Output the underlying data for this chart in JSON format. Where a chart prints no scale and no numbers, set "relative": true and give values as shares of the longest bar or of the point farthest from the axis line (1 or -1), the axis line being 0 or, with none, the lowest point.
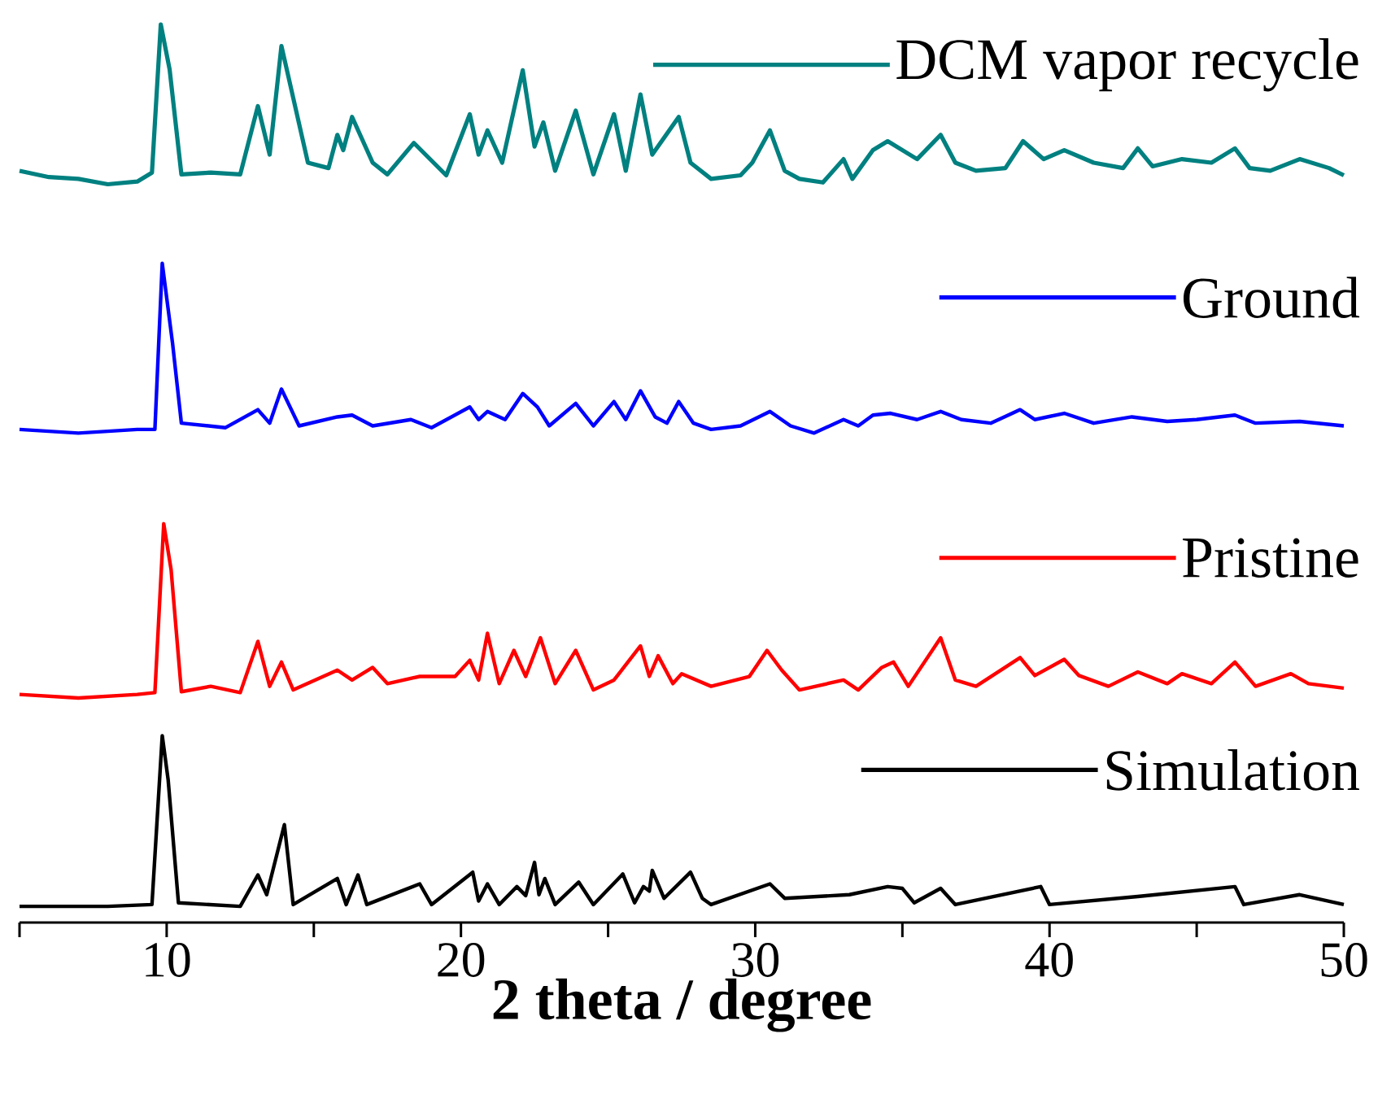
{
  "chart_data": {
    "type": "line",
    "relative": true,
    "xlabel": "2 theta / degree",
    "xlim": [
      5,
      50
    ],
    "xticks": [
      {
        "value": 5,
        "label": null
      },
      10,
      {
        "value": 15,
        "label": null
      },
      20,
      {
        "value": 25,
        "label": null
      },
      30,
      {
        "value": 35,
        "label": null
      },
      40,
      {
        "value": 45,
        "label": null
      },
      50
    ],
    "legend": "right",
    "series": [
      {
        "name": "DCM vapor recycle",
        "color": "#008080",
        "x": [
          5,
          6,
          7,
          8,
          9,
          9.5,
          9.8,
          10.1,
          10.5,
          11.5,
          12.5,
          13.1,
          13.5,
          13.9,
          14.8,
          15.5,
          15.8,
          16.0,
          16.3,
          17,
          17.5,
          18.4,
          19.5,
          20.3,
          20.6,
          20.9,
          21.4,
          22.1,
          22.5,
          22.8,
          23.2,
          23.9,
          24.5,
          25.2,
          25.6,
          26.1,
          26.5,
          27.4,
          27.8,
          28.5,
          29.5,
          29.9,
          30.5,
          31.0,
          31.5,
          32.3,
          33.0,
          33.3,
          34.0,
          34.5,
          35.5,
          36.3,
          36.8,
          37.5,
          38.5,
          39.1,
          39.8,
          40.5,
          41.5,
          42.5,
          43.0,
          43.5,
          44.5,
          45.5,
          46.3,
          46.8,
          47.5,
          48.5,
          49.5,
          50
        ],
        "values": [
          0.837,
          0.83,
          0.828,
          0.822,
          0.825,
          0.835,
          1.0,
          0.95,
          0.833,
          0.835,
          0.833,
          0.909,
          0.855,
          0.976,
          0.846,
          0.84,
          0.877,
          0.86,
          0.897,
          0.846,
          0.833,
          0.868,
          0.832,
          0.9,
          0.855,
          0.882,
          0.846,
          0.949,
          0.864,
          0.891,
          0.837,
          0.904,
          0.833,
          0.9,
          0.837,
          0.922,
          0.855,
          0.897,
          0.846,
          0.828,
          0.832,
          0.846,
          0.882,
          0.837,
          0.828,
          0.824,
          0.85,
          0.828,
          0.86,
          0.87,
          0.85,
          0.877,
          0.846,
          0.837,
          0.84,
          0.87,
          0.85,
          0.86,
          0.846,
          0.84,
          0.862,
          0.842,
          0.85,
          0.846,
          0.862,
          0.84,
          0.837,
          0.85,
          0.84,
          0.832
        ]
      },
      {
        "name": "Ground",
        "color": "#0000ff",
        "x": [
          5,
          7,
          9,
          9.6,
          9.85,
          10.2,
          10.5,
          12,
          13.1,
          13.5,
          13.9,
          14.5,
          15.8,
          16.3,
          17,
          18.3,
          19,
          20.3,
          20.6,
          20.9,
          21.5,
          22.1,
          22.6,
          23,
          23.9,
          24.5,
          25.2,
          25.6,
          26.1,
          26.6,
          27,
          27.4,
          27.9,
          28.5,
          29.5,
          30.5,
          31.2,
          32,
          33,
          33.5,
          34,
          34.6,
          35.5,
          36.3,
          37,
          38,
          39,
          39.5,
          40.5,
          41.5,
          42.8,
          44,
          45,
          46.3,
          47,
          48.5,
          50
        ],
        "values": [
          0.549,
          0.545,
          0.549,
          0.549,
          0.734,
          0.645,
          0.556,
          0.551,
          0.571,
          0.556,
          0.594,
          0.553,
          0.563,
          0.565,
          0.553,
          0.56,
          0.551,
          0.574,
          0.56,
          0.569,
          0.56,
          0.589,
          0.574,
          0.553,
          0.578,
          0.553,
          0.58,
          0.56,
          0.592,
          0.563,
          0.556,
          0.58,
          0.556,
          0.549,
          0.553,
          0.569,
          0.553,
          0.545,
          0.56,
          0.553,
          0.565,
          0.567,
          0.56,
          0.569,
          0.56,
          0.556,
          0.571,
          0.56,
          0.567,
          0.556,
          0.563,
          0.558,
          0.56,
          0.565,
          0.556,
          0.558,
          0.553
        ]
      },
      {
        "name": "Pristine",
        "color": "#ff0000",
        "x": [
          5,
          7,
          9,
          9.6,
          9.9,
          10.15,
          10.5,
          11.5,
          12.5,
          13.1,
          13.5,
          13.9,
          14.3,
          15.8,
          16.3,
          17,
          17.5,
          18.6,
          19.8,
          20.3,
          20.6,
          20.9,
          21.3,
          21.8,
          22.2,
          22.7,
          23.2,
          23.9,
          24.5,
          25.2,
          26.1,
          26.4,
          26.7,
          27.2,
          27.5,
          28.5,
          29.8,
          30.4,
          30.9,
          31.5,
          33,
          33.5,
          34.3,
          34.7,
          35.2,
          36.3,
          36.8,
          37.5,
          39,
          39.5,
          40.5,
          41,
          42,
          43,
          44,
          44.5,
          45.5,
          46.3,
          47,
          48.2,
          48.8,
          50
        ],
        "values": [
          0.254,
          0.25,
          0.254,
          0.256,
          0.444,
          0.393,
          0.257,
          0.263,
          0.256,
          0.313,
          0.263,
          0.29,
          0.259,
          0.281,
          0.27,
          0.284,
          0.266,
          0.274,
          0.274,
          0.292,
          0.27,
          0.322,
          0.266,
          0.303,
          0.274,
          0.317,
          0.266,
          0.303,
          0.259,
          0.27,
          0.308,
          0.274,
          0.297,
          0.266,
          0.277,
          0.263,
          0.274,
          0.303,
          0.281,
          0.259,
          0.27,
          0.259,
          0.284,
          0.29,
          0.263,
          0.317,
          0.27,
          0.263,
          0.295,
          0.275,
          0.293,
          0.275,
          0.263,
          0.279,
          0.266,
          0.277,
          0.266,
          0.29,
          0.263,
          0.277,
          0.266,
          0.261
        ]
      },
      {
        "name": "Simulation",
        "color": "#000000",
        "x": [
          5,
          8,
          9.5,
          9.85,
          10.05,
          10.4,
          12.5,
          13.1,
          13.4,
          14,
          14.3,
          15.8,
          16.1,
          16.5,
          16.8,
          18.6,
          19,
          20.4,
          20.6,
          20.9,
          21.3,
          21.9,
          22.2,
          22.5,
          22.65,
          22.85,
          23.2,
          24,
          24.5,
          25.5,
          25.9,
          26.2,
          26.4,
          26.5,
          26.9,
          27.8,
          28.2,
          28.5,
          30.5,
          31,
          33.2,
          34.5,
          35,
          35.4,
          36.3,
          36.8,
          39.7,
          40,
          43,
          46.3,
          46.6,
          48.5,
          50
        ],
        "values": [
          0.018,
          0.018,
          0.02,
          0.208,
          0.159,
          0.022,
          0.018,
          0.053,
          0.031,
          0.109,
          0.02,
          0.049,
          0.02,
          0.053,
          0.02,
          0.043,
          0.02,
          0.056,
          0.024,
          0.043,
          0.02,
          0.04,
          0.03,
          0.067,
          0.031,
          0.049,
          0.02,
          0.045,
          0.02,
          0.054,
          0.022,
          0.04,
          0.035,
          0.058,
          0.027,
          0.056,
          0.027,
          0.02,
          0.043,
          0.027,
          0.031,
          0.04,
          0.038,
          0.022,
          0.038,
          0.02,
          0.04,
          0.02,
          0.029,
          0.04,
          0.02,
          0.031,
          0.02
        ]
      }
    ]
  }
}
